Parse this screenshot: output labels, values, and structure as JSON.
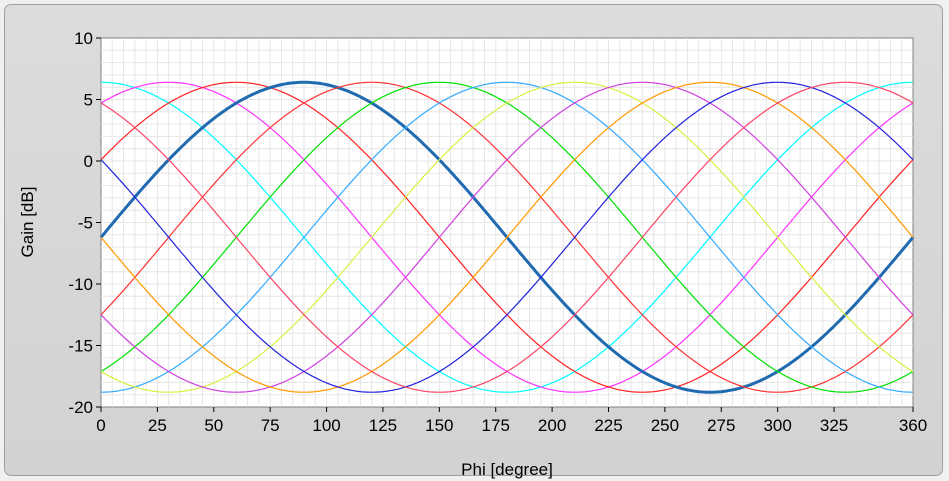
{
  "chart_data": {
    "type": "line",
    "title": "",
    "xlabel": "Phi [degree]",
    "ylabel": "Gain [dB]",
    "xlim": [
      0,
      360
    ],
    "ylim": [
      -20,
      10
    ],
    "x_ticks": [
      "0",
      "25",
      "50",
      "75",
      "100",
      "125",
      "150",
      "175",
      "200",
      "225",
      "250",
      "275",
      "300",
      "325",
      "360"
    ],
    "y_ticks": [
      "10",
      "5",
      "0",
      "-5",
      "-10",
      "-15",
      "-20"
    ],
    "grid": true,
    "background": "#ffffff",
    "grid_color": "#e6e6e6",
    "gain_max_db": 6.4,
    "gain_min_db": -18.8,
    "series": [
      {
        "peak_deg": 0,
        "color": "#00ffff",
        "bold": false
      },
      {
        "peak_deg": 30,
        "color": "#ff33ff",
        "bold": false
      },
      {
        "peak_deg": 60,
        "color": "#ff2222",
        "bold": false
      },
      {
        "peak_deg": 90,
        "color": "#1f6ab0",
        "bold": true
      },
      {
        "peak_deg": 120,
        "color": "#ff3333",
        "bold": false
      },
      {
        "peak_deg": 150,
        "color": "#00e000",
        "bold": false
      },
      {
        "peak_deg": 180,
        "color": "#33aaff",
        "bold": false
      },
      {
        "peak_deg": 210,
        "color": "#d8f040",
        "bold": false
      },
      {
        "peak_deg": 240,
        "color": "#d040e0",
        "bold": false
      },
      {
        "peak_deg": 270,
        "color": "#ff9900",
        "bold": false
      },
      {
        "peak_deg": 300,
        "color": "#2222dd",
        "bold": false
      },
      {
        "peak_deg": 330,
        "color": "#ff4466",
        "bold": false
      }
    ]
  }
}
